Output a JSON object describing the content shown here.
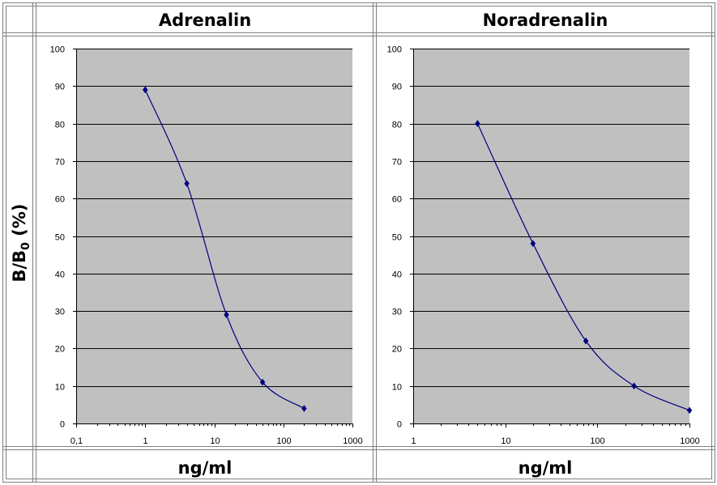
{
  "table": {
    "y_axis_label": "B/B",
    "y_axis_label_sub": "0",
    "y_axis_label_suffix": " (%)",
    "x_axis_label_left": "ng/ml",
    "x_axis_label_right": "ng/ml"
  },
  "colors": {
    "plot_bg": "#c0c0c0",
    "curve": "#000080",
    "gridline": "#000000",
    "border": "#808080"
  },
  "chart_data": [
    {
      "type": "scatter",
      "title": "Adrenalin",
      "xlabel": "ng/ml",
      "ylabel": "B/B0 (%)",
      "x_scale": "log",
      "xlim": [
        0.1,
        1000
      ],
      "ylim": [
        0,
        100
      ],
      "x_tick_labels": [
        "0,1",
        "1",
        "10",
        "100",
        "1000"
      ],
      "x_tick_values": [
        0.1,
        1,
        10,
        100,
        1000
      ],
      "y_tick_labels": [
        "0",
        "10",
        "20",
        "30",
        "40",
        "50",
        "60",
        "70",
        "80",
        "90",
        "100"
      ],
      "y_tick_values": [
        0,
        10,
        20,
        30,
        40,
        50,
        60,
        70,
        80,
        90,
        100
      ],
      "grid": "horizontal",
      "smoothed_line": true,
      "series": [
        {
          "x": [
            1,
            4,
            15,
            50,
            200
          ],
          "y": [
            89,
            64,
            29,
            11,
            4
          ]
        }
      ]
    },
    {
      "type": "scatter",
      "title": "Noradrenalin",
      "xlabel": "ng/ml",
      "ylabel": "B/B0 (%)",
      "x_scale": "log",
      "xlim": [
        1,
        1000
      ],
      "ylim": [
        0,
        100
      ],
      "x_tick_labels": [
        "1",
        "10",
        "100",
        "1000"
      ],
      "x_tick_values": [
        1,
        10,
        100,
        1000
      ],
      "y_tick_labels": [
        "0",
        "10",
        "20",
        "30",
        "40",
        "50",
        "60",
        "70",
        "80",
        "90",
        "100"
      ],
      "y_tick_values": [
        0,
        10,
        20,
        30,
        40,
        50,
        60,
        70,
        80,
        90,
        100
      ],
      "grid": "horizontal",
      "smoothed_line": true,
      "series": [
        {
          "x": [
            5,
            20,
            75,
            250,
            1000
          ],
          "y": [
            80,
            48,
            22,
            10,
            3.5
          ]
        }
      ]
    }
  ]
}
